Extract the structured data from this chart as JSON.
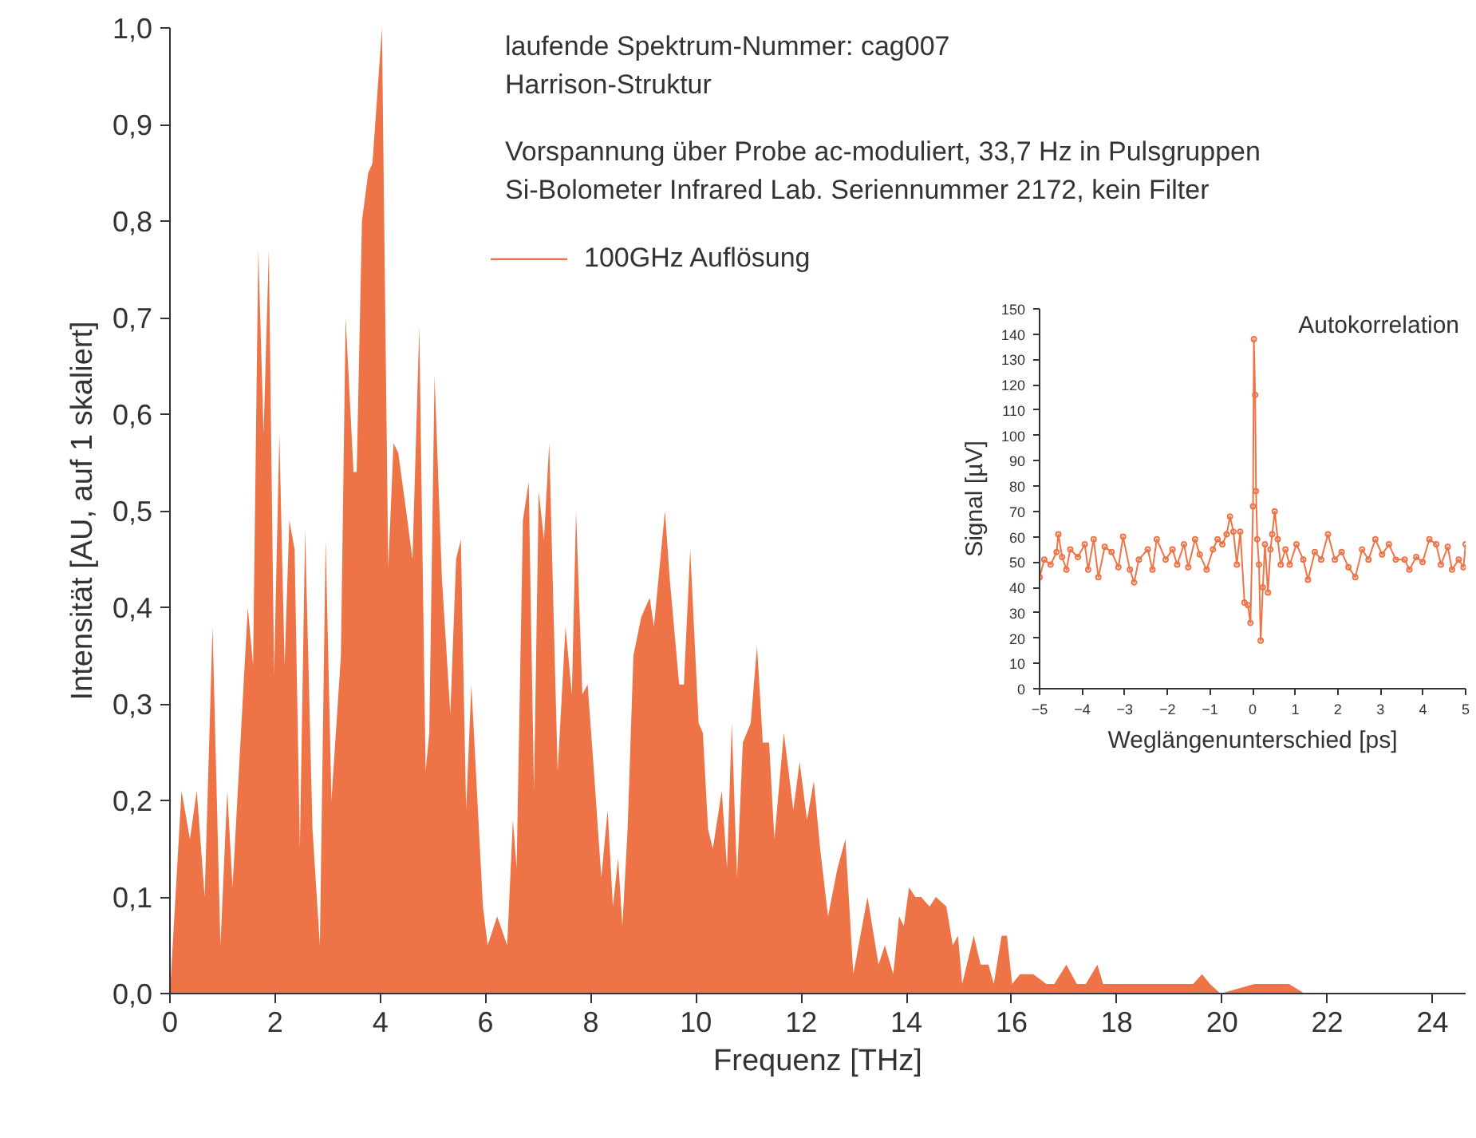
{
  "chart_data": [
    {
      "type": "area",
      "xlabel": "Frequenz [THz]",
      "ylabel": "Intensität [AU, auf 1 skaliert]",
      "annotations": [
        "laufende Spektrum-Nummer: cag007",
        "Harrison-Struktur",
        "Vorspannung über Probe ac-moduliert, 33,7 Hz in Pulsgruppen",
        "Si-Bolometer Infrared Lab. Seriennummer 2172, kein Filter"
      ],
      "legend": "top",
      "xlim": [
        0,
        24.63
      ],
      "ylim": [
        0,
        1.0
      ],
      "xticks": [
        0,
        2,
        4,
        6,
        8,
        10,
        12,
        14,
        16,
        18,
        20,
        22,
        24
      ],
      "yticks": [
        {
          "value": 0,
          "label": "0,0"
        },
        {
          "value": 0.1,
          "label": "0,1"
        },
        {
          "value": 0.2,
          "label": "0,2"
        },
        {
          "value": 0.3,
          "label": "0,3"
        },
        {
          "value": 0.4,
          "label": "0,4"
        },
        {
          "value": 0.5,
          "label": "0,5"
        },
        {
          "value": 0.6,
          "label": "0,6"
        },
        {
          "value": 0.7,
          "label": "0,7"
        },
        {
          "value": 0.8,
          "label": "0,8"
        },
        {
          "value": 0.9,
          "label": "0,9"
        },
        {
          "value": 1.0,
          "label": "1,0"
        }
      ],
      "grid": false,
      "series": [
        {
          "name": "100GHz Auflösung",
          "color": "#ee7447",
          "x": [
            0,
            0.22,
            0.38,
            0.51,
            0.66,
            0.81,
            0.96,
            1.09,
            1.19,
            1.48,
            1.58,
            1.68,
            1.78,
            1.88,
            1.98,
            2.08,
            2.18,
            2.27,
            2.37,
            2.47,
            2.57,
            2.71,
            2.85,
            2.96,
            3.07,
            3.25,
            3.34,
            3.49,
            3.55,
            3.65,
            3.77,
            3.85,
            4.03,
            4.15,
            4.25,
            4.34,
            4.49,
            4.61,
            4.74,
            4.86,
            4.93,
            5.03,
            5.17,
            5.33,
            5.44,
            5.53,
            5.63,
            5.73,
            5.95,
            6.04,
            6.22,
            6.41,
            6.52,
            6.59,
            6.71,
            6.82,
            6.92,
            7.01,
            7.11,
            7.21,
            7.37,
            7.52,
            7.64,
            7.72,
            7.84,
            7.94,
            8.06,
            8.2,
            8.32,
            8.42,
            8.52,
            8.6,
            8.7,
            8.81,
            8.96,
            9.12,
            9.2,
            9.41,
            9.5,
            9.68,
            9.77,
            9.89,
            10.05,
            10.13,
            10.23,
            10.32,
            10.49,
            10.59,
            10.68,
            10.78,
            10.89,
            11.04,
            11.16,
            11.27,
            11.39,
            11.49,
            11.67,
            11.85,
            11.97,
            12.11,
            12.24,
            12.36,
            12.51,
            12.69,
            12.84,
            12.99,
            13.26,
            13.47,
            13.59,
            13.75,
            13.86,
            13.95,
            14.05,
            14.17,
            14.28,
            14.44,
            14.56,
            14.76,
            14.88,
            14.98,
            15.06,
            15.28,
            15.41,
            15.56,
            15.66,
            15.81,
            15.91,
            16.01,
            16.16,
            16.41,
            16.66,
            16.81,
            17.04,
            17.24,
            17.41,
            17.63,
            17.74,
            17.95,
            18.47,
            18.65,
            18.82,
            19.27,
            19.45,
            19.62,
            19.77,
            19.97,
            20.62,
            20.92,
            21.27,
            21.57,
            22.28,
            22.68,
            23.28,
            24.08,
            24.63
          ],
          "values": [
            0.0,
            0.21,
            0.16,
            0.21,
            0.1,
            0.38,
            0.05,
            0.21,
            0.11,
            0.4,
            0.34,
            0.77,
            0.58,
            0.77,
            0.33,
            0.58,
            0.34,
            0.49,
            0.46,
            0.15,
            0.48,
            0.17,
            0.05,
            0.47,
            0.2,
            0.35,
            0.7,
            0.54,
            0.54,
            0.8,
            0.85,
            0.86,
            1.0,
            0.44,
            0.57,
            0.56,
            0.5,
            0.45,
            0.69,
            0.23,
            0.27,
            0.64,
            0.43,
            0.29,
            0.45,
            0.47,
            0.19,
            0.32,
            0.09,
            0.05,
            0.08,
            0.05,
            0.18,
            0.13,
            0.49,
            0.53,
            0.21,
            0.52,
            0.47,
            0.57,
            0.23,
            0.38,
            0.31,
            0.5,
            0.31,
            0.32,
            0.23,
            0.12,
            0.19,
            0.09,
            0.14,
            0.07,
            0.17,
            0.35,
            0.39,
            0.41,
            0.38,
            0.5,
            0.43,
            0.32,
            0.32,
            0.46,
            0.28,
            0.27,
            0.17,
            0.15,
            0.21,
            0.13,
            0.28,
            0.12,
            0.26,
            0.28,
            0.36,
            0.26,
            0.26,
            0.16,
            0.27,
            0.19,
            0.24,
            0.18,
            0.22,
            0.15,
            0.08,
            0.13,
            0.16,
            0.02,
            0.1,
            0.03,
            0.05,
            0.02,
            0.08,
            0.07,
            0.11,
            0.1,
            0.1,
            0.09,
            0.1,
            0.09,
            0.05,
            0.06,
            0.01,
            0.06,
            0.03,
            0.03,
            0.01,
            0.06,
            0.06,
            0.01,
            0.02,
            0.02,
            0.01,
            0.01,
            0.03,
            0.01,
            0.01,
            0.03,
            0.01,
            0.01,
            0.01,
            0.01,
            0.01,
            0.01,
            0.01,
            0.02,
            0.01,
            0.0,
            0.01,
            0.01,
            0.01,
            0.0,
            0.0,
            0.0,
            0.0,
            0.0,
            0.0
          ]
        }
      ]
    },
    {
      "type": "line",
      "title": "Autokorrelation",
      "xlabel": "Weglängenunterschied [ps]",
      "ylabel": "Signal [µV]",
      "xlim": [
        -5,
        5
      ],
      "ylim": [
        0,
        150
      ],
      "xticks": [
        -5,
        -4,
        -3,
        -2,
        -1,
        0,
        1,
        2,
        3,
        4,
        5
      ],
      "yticks": [
        0,
        10,
        20,
        30,
        40,
        50,
        60,
        70,
        80,
        90,
        100,
        110,
        120,
        130,
        140,
        150
      ],
      "grid": false,
      "marker": "circle",
      "series": [
        {
          "color": "#ee7447",
          "x": [
            -5,
            -4.89,
            -4.74,
            -4.6,
            -4.56,
            -4.47,
            -4.37,
            -4.28,
            -4.1,
            -3.94,
            -3.86,
            -3.73,
            -3.62,
            -3.47,
            -3.31,
            -3.15,
            -3.04,
            -2.88,
            -2.78,
            -2.67,
            -2.46,
            -2.35,
            -2.25,
            -2.04,
            -1.88,
            -1.77,
            -1.61,
            -1.51,
            -1.35,
            -1.24,
            -1.08,
            -0.93,
            -0.82,
            -0.71,
            -0.61,
            -0.53,
            -0.45,
            -0.37,
            -0.29,
            -0.19,
            -0.11,
            -0.05,
            0.01,
            0.03,
            0.06,
            0.08,
            0.11,
            0.15,
            0.19,
            0.24,
            0.29,
            0.36,
            0.42,
            0.46,
            0.52,
            0.59,
            0.66,
            0.77,
            0.87,
            1.03,
            1.19,
            1.3,
            1.46,
            1.61,
            1.77,
            1.93,
            2.09,
            2.25,
            2.41,
            2.57,
            2.72,
            2.88,
            3.04,
            3.2,
            3.36,
            3.57,
            3.68,
            3.84,
            3.99,
            4.15,
            4.31,
            4.42,
            4.58,
            4.68,
            4.84,
            4.95,
            5
          ],
          "values": [
            44,
            51,
            49,
            54,
            61,
            52,
            47,
            55,
            52,
            57,
            47,
            59,
            44,
            56,
            54,
            48,
            60,
            47,
            42,
            51,
            55,
            47,
            59,
            51,
            55,
            49,
            57,
            48,
            59,
            53,
            47,
            55,
            59,
            57,
            61,
            68,
            62,
            49,
            62,
            34,
            33,
            26,
            72,
            138,
            116,
            78,
            59,
            49,
            19,
            40,
            57,
            38,
            55,
            61,
            70,
            59,
            49,
            55,
            49,
            57,
            51,
            43,
            54,
            51,
            61,
            51,
            54,
            48,
            44,
            55,
            51,
            59,
            53,
            57,
            51,
            51,
            47,
            52,
            50,
            59,
            57,
            49,
            56,
            47,
            51,
            48,
            57
          ]
        }
      ]
    }
  ]
}
